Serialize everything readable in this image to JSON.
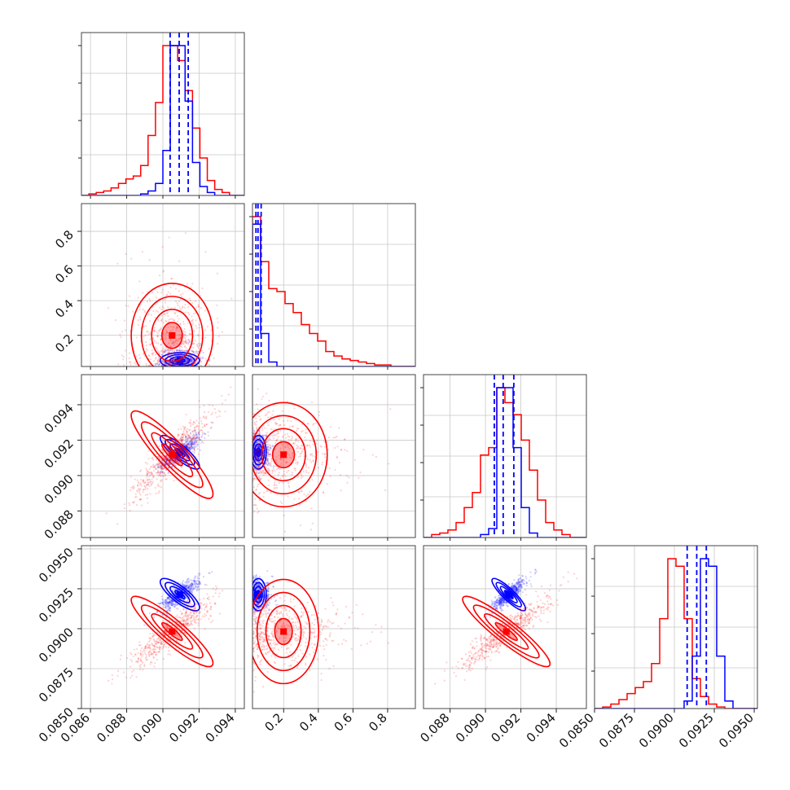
{
  "colors": {
    "blue": "#0000ff",
    "red": "#ff0000",
    "grid": "#c8c8c8",
    "frame": "#444444"
  },
  "chart_data": {
    "type": "corner",
    "grid": true,
    "parameters": [
      {
        "range": [
          0.0855,
          0.0945
        ],
        "ticks": [
          "0.086",
          "0.088",
          "0.090",
          "0.092",
          "0.094"
        ],
        "tickvals": [
          0.086,
          0.088,
          0.09,
          0.092,
          0.094
        ]
      },
      {
        "range": [
          0.02,
          0.96
        ],
        "ticks": [
          "0.2",
          "0.4",
          "0.6",
          "0.8"
        ],
        "tickvals": [
          0.2,
          0.4,
          0.6,
          0.8
        ]
      },
      {
        "range": [
          0.0865,
          0.0957
        ],
        "ticks": [
          "0.088",
          "0.090",
          "0.092",
          "0.094"
        ],
        "tickvals": [
          0.088,
          0.09,
          0.092,
          0.094
        ]
      },
      {
        "range": [
          0.085,
          0.0952
        ],
        "ticks": [
          "0.0850",
          "0.0875",
          "0.0900",
          "0.0925",
          "0.0950"
        ],
        "tickvals": [
          0.085,
          0.0875,
          0.09,
          0.0925,
          0.095
        ]
      }
    ],
    "series": [
      {
        "color": "#0000ff",
        "quantiles": [
          [
            0.0904,
            0.0909,
            0.0914
          ],
          [
            0.04,
            0.052,
            0.07
          ],
          [
            0.0905,
            0.091,
            0.0916
          ],
          [
            0.0908,
            0.0914,
            0.092
          ]
        ],
        "hist": [
          {
            "x0": 0.0855,
            "x1": 0.0945,
            "counts": [
              0,
              0,
              0,
              0,
              0,
              0,
              0,
              0,
              1,
              3,
              8,
              30,
              100,
              100,
              63,
              22,
              6,
              2,
              0,
              0,
              0,
              0
            ]
          },
          {
            "x0": 0.02,
            "x1": 0.96,
            "counts": [
              95,
              22,
              3,
              0,
              0,
              0,
              0,
              0,
              0,
              0,
              0,
              0,
              0,
              0,
              0,
              0,
              0,
              0,
              0,
              0
            ]
          },
          {
            "x0": 0.0865,
            "x1": 0.0957,
            "counts": [
              0,
              0,
              0,
              0,
              0,
              0,
              0,
              2,
              6,
              100,
              100,
              60,
              20,
              3,
              0,
              0,
              0,
              0,
              0,
              0
            ]
          },
          {
            "x0": 0.085,
            "x1": 0.0952,
            "counts": [
              0,
              0,
              0,
              0,
              0,
              0,
              0,
              0,
              0,
              0,
              0,
              5,
              35,
              100,
              95,
              35,
              5,
              0,
              0,
              0
            ]
          }
        ],
        "corr": [
          [
            1,
            0.05,
            0.85,
            0.8
          ],
          [
            0.05,
            1,
            0.05,
            0.05
          ],
          [
            0.85,
            0.05,
            1,
            0.88
          ],
          [
            0.8,
            0.05,
            0.88,
            1
          ]
        ]
      },
      {
        "color": "#ff0000",
        "quantiles": [],
        "hist": [
          {
            "x0": 0.0855,
            "x1": 0.0945,
            "counts": [
              0,
              1,
              2,
              3,
              5,
              8,
              11,
              13,
              20,
              40,
              62,
              100,
              100,
              90,
              70,
              45,
              25,
              10,
              4,
              2,
              0,
              0
            ]
          },
          {
            "x0": 0.02,
            "x1": 0.96,
            "counts": [
              100,
              70,
              52,
              50,
              42,
              36,
              28,
              22,
              17,
              10,
              7,
              5,
              4,
              3,
              2,
              1,
              1,
              0,
              0,
              0
            ]
          },
          {
            "x0": 0.0865,
            "x1": 0.0957,
            "counts": [
              0,
              2,
              3,
              5,
              10,
              20,
              30,
              55,
              60,
              100,
              90,
              82,
              65,
              45,
              25,
              10,
              5,
              2,
              0,
              0
            ]
          },
          {
            "x0": 0.085,
            "x1": 0.0952,
            "counts": [
              0,
              1,
              3,
              6,
              10,
              14,
              18,
              30,
              60,
              100,
              95,
              60,
              20,
              8,
              3,
              1,
              0,
              0,
              0,
              0
            ]
          }
        ],
        "corr": [
          [
            1,
            -0.1,
            0.9,
            0.9
          ],
          [
            -0.1,
            1,
            -0.1,
            -0.1
          ],
          [
            0.9,
            -0.1,
            1,
            0.92
          ],
          [
            0.9,
            -0.1,
            0.92,
            1
          ]
        ]
      }
    ]
  }
}
